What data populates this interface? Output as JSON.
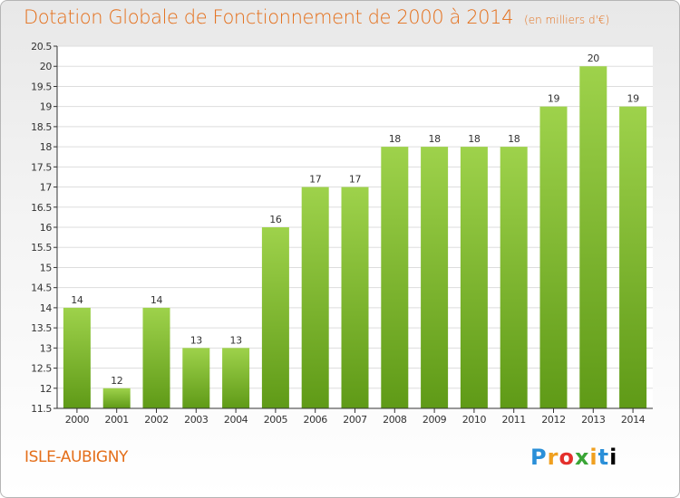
{
  "header": {
    "title": "Dotation Globale de Fonctionnement de 2000 à 2014",
    "unit": "(en milliers d'€)"
  },
  "footer": {
    "commune": "ISLE-AUBIGNY",
    "brand": "Proxiti"
  },
  "colors": {
    "title": "#e46e19",
    "bar_light": "#9ed24b",
    "bar_dark": "#5f9a17",
    "grid": "#dddddd"
  },
  "chart_data": {
    "type": "bar",
    "categories": [
      "2000",
      "2001",
      "2002",
      "2003",
      "2004",
      "2005",
      "2006",
      "2007",
      "2008",
      "2009",
      "2010",
      "2011",
      "2012",
      "2013",
      "2014"
    ],
    "values": [
      14,
      12,
      14,
      13,
      13,
      16,
      17,
      17,
      18,
      18,
      18,
      18,
      19,
      20,
      19
    ],
    "labels": [
      "14",
      "12",
      "14",
      "13",
      "13",
      "16",
      "17",
      "17",
      "18",
      "18",
      "18",
      "18",
      "19",
      "20",
      "19"
    ],
    "ylim": [
      11.5,
      20.5
    ],
    "yticks": [
      "11.5",
      "12",
      "12.5",
      "13",
      "13.5",
      "14",
      "14.5",
      "15",
      "15.5",
      "16",
      "16.5",
      "17",
      "17.5",
      "18",
      "18.5",
      "19",
      "19.5",
      "20",
      "20.5"
    ],
    "grid": true
  }
}
